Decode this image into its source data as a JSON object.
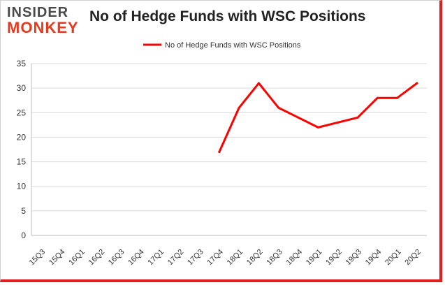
{
  "brand": {
    "logo_line1": "INSIDER",
    "logo_line2": "MONKEY"
  },
  "chart_data": {
    "type": "line",
    "title": "No of Hedge Funds with WSC Positions",
    "xlabel": "",
    "ylabel": "",
    "categories": [
      "15Q3",
      "15Q4",
      "16Q1",
      "16Q2",
      "16Q3",
      "16Q4",
      "17Q1",
      "17Q2",
      "17Q3",
      "17Q4",
      "18Q1",
      "18Q2",
      "18Q3",
      "18Q4",
      "19Q1",
      "19Q2",
      "19Q3",
      "19Q4",
      "20Q1",
      "20Q2"
    ],
    "series": [
      {
        "name": "No of Hedge Funds with WSC Positions",
        "color": "#ff0000",
        "values": [
          null,
          null,
          null,
          null,
          null,
          null,
          null,
          null,
          null,
          17,
          26,
          31,
          26,
          24,
          22,
          23,
          24,
          28,
          28,
          31
        ]
      }
    ],
    "ylim": [
      0,
      35
    ],
    "yticks": [
      0,
      5,
      10,
      15,
      20,
      25,
      30,
      35
    ],
    "grid": true,
    "legend_position": "top-center"
  }
}
